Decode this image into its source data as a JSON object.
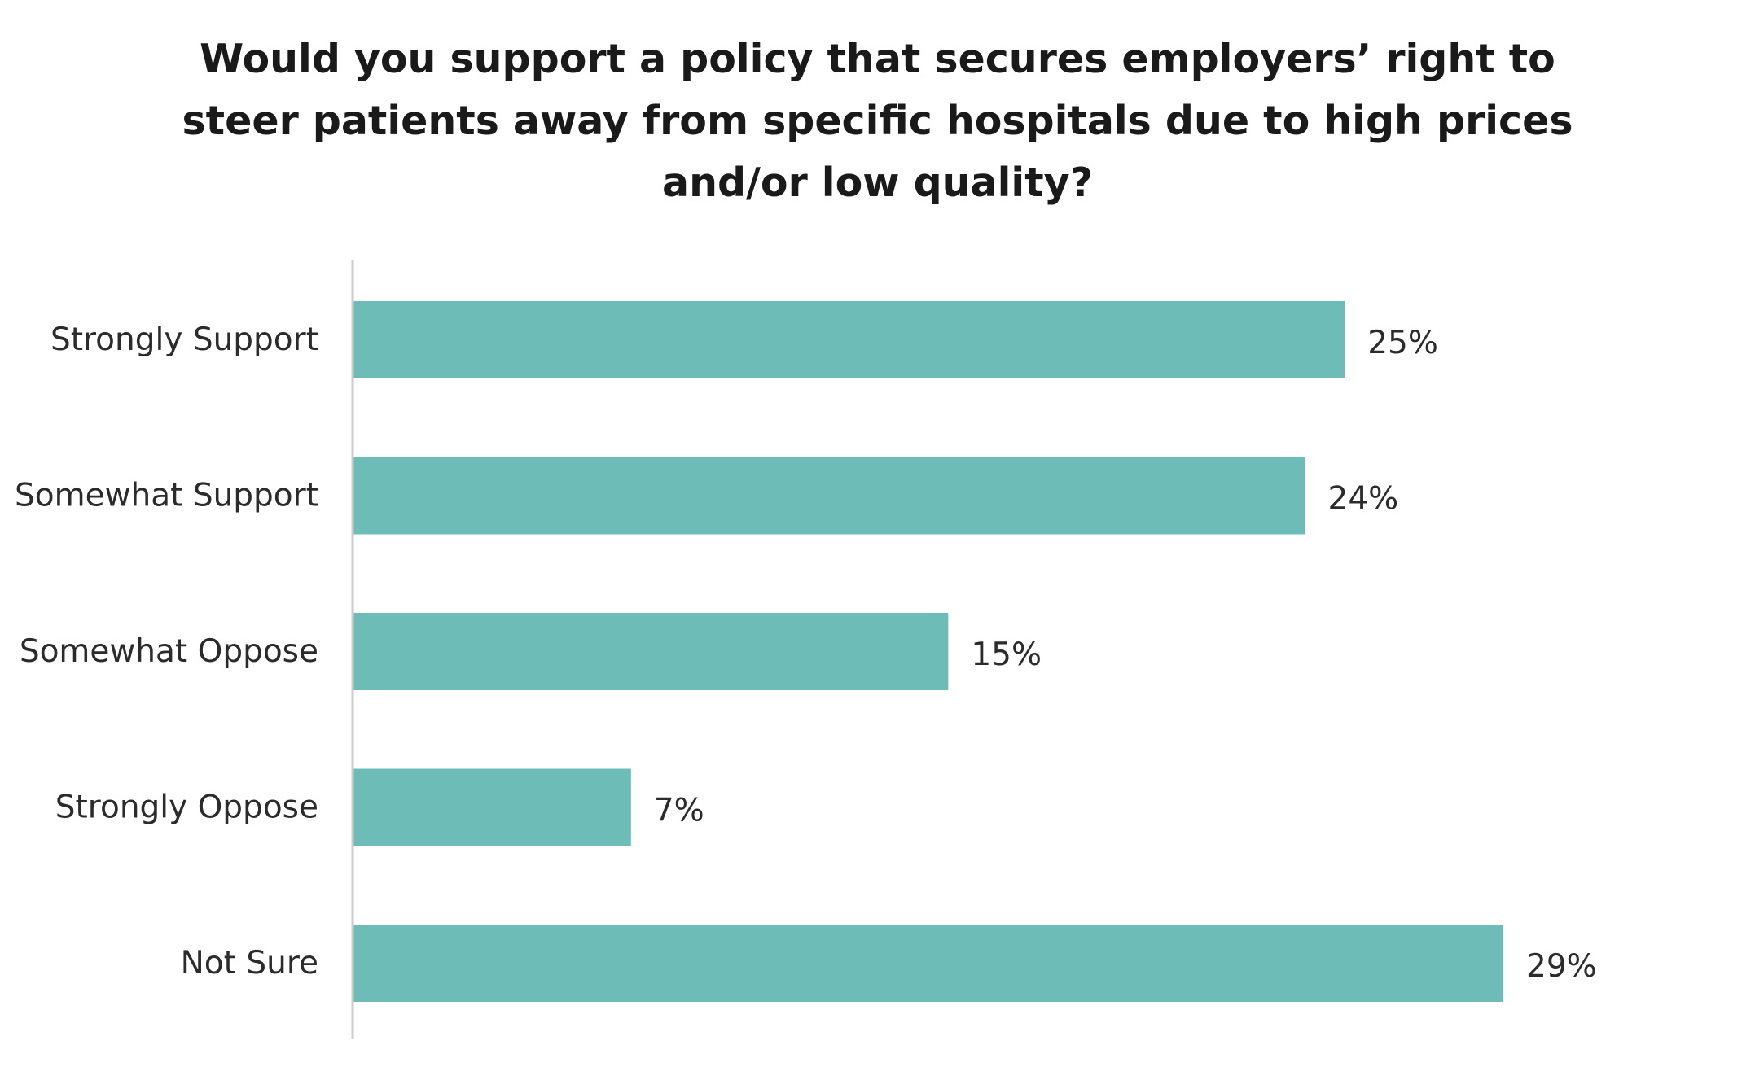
{
  "chart_data": {
    "type": "bar",
    "orientation": "horizontal",
    "title": "Would you support a policy that secures employers’ right to\nsteer patients away from specific hospitals due to high prices\nand/or low quality?",
    "categories": [
      "Strongly Support",
      "Somewhat Support",
      "Somewhat Oppose",
      "Strongly Oppose",
      "Not Sure"
    ],
    "values": [
      25,
      24,
      15,
      7,
      29
    ],
    "value_labels": [
      "25%",
      "24%",
      "15%",
      "7%",
      "29%"
    ],
    "unit": "%",
    "xlim": [
      0,
      29
    ],
    "bar_color": "#6dbcb8",
    "axis_color": "#cccccc",
    "grid": false,
    "legend": "none"
  }
}
